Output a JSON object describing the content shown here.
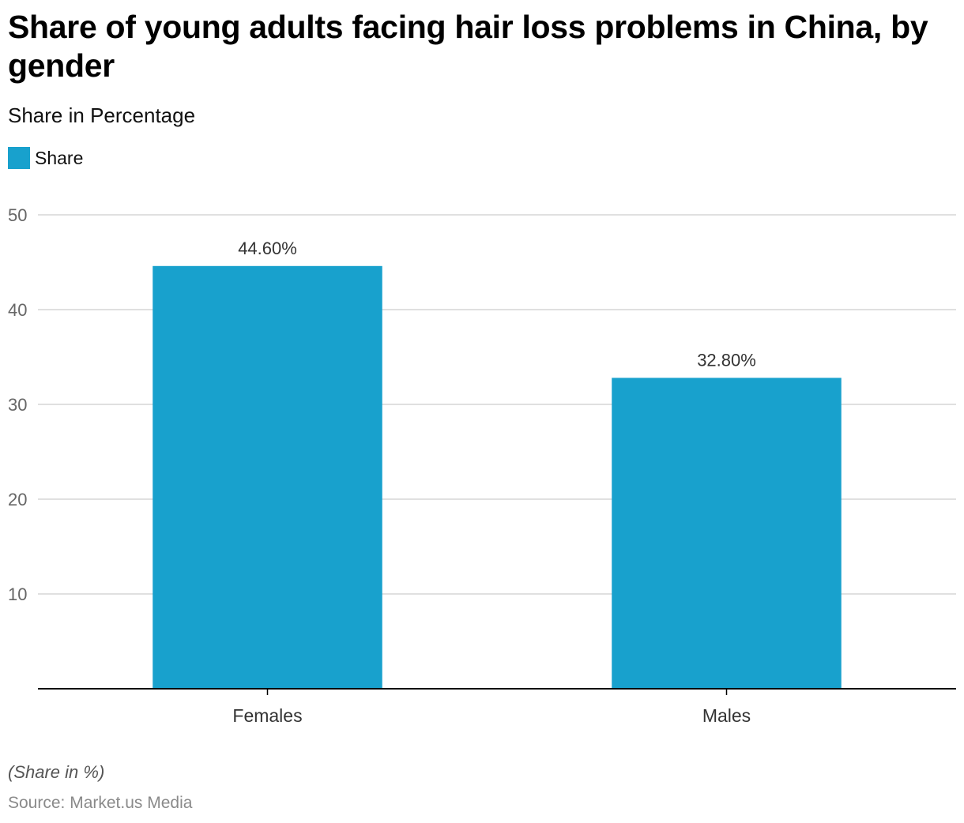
{
  "title": "Share of young adults facing hair loss problems in China, by gender",
  "subtitle": "Share in Percentage",
  "footnote": "(Share in %)",
  "source": "Source: Market.us Media",
  "colors": {
    "bar": "#18A1CD",
    "grid": "#d6d6d6",
    "axis": "#000000",
    "tick_text": "#666666",
    "label_text": "#333333"
  },
  "chart_data": {
    "type": "bar",
    "categories": [
      "Females",
      "Males"
    ],
    "series": [
      {
        "name": "Share",
        "values": [
          44.6,
          32.8
        ],
        "data_labels": [
          "44.60%",
          "32.80%"
        ]
      }
    ],
    "ylim": [
      0,
      50
    ],
    "yticks": [
      10,
      20,
      30,
      40,
      50
    ],
    "grid": true,
    "legend": "top-left",
    "xlabel": "",
    "ylabel": ""
  }
}
